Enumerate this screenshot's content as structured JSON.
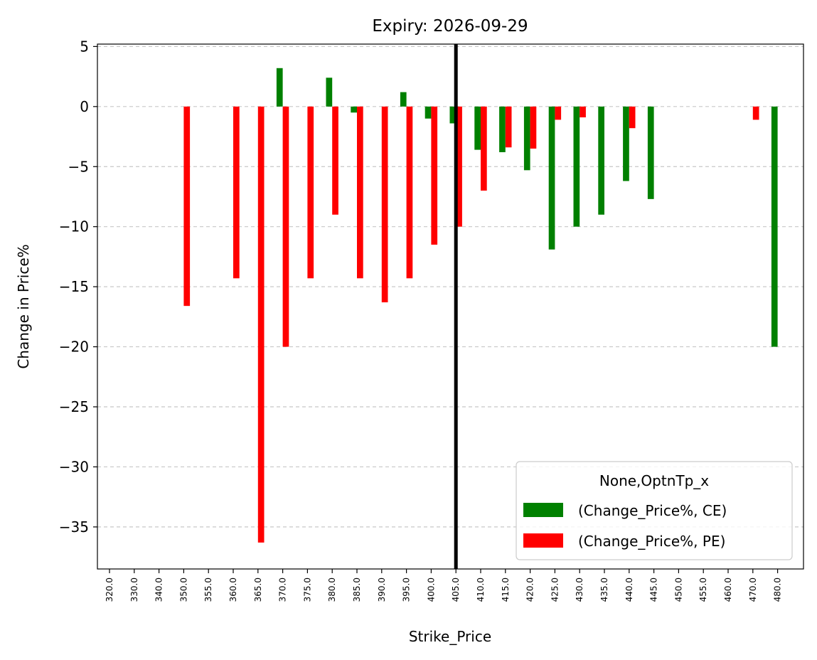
{
  "chart_data": {
    "type": "bar",
    "title": "Expiry: 2026-09-29",
    "xlabel": "Strike_Price",
    "ylabel": "Change in Price%",
    "categories": [
      "320.0",
      "330.0",
      "340.0",
      "350.0",
      "355.0",
      "360.0",
      "365.0",
      "370.0",
      "375.0",
      "380.0",
      "385.0",
      "390.0",
      "395.0",
      "400.0",
      "405.0",
      "410.0",
      "415.0",
      "420.0",
      "425.0",
      "430.0",
      "435.0",
      "440.0",
      "445.0",
      "450.0",
      "455.0",
      "460.0",
      "470.0",
      "480.0"
    ],
    "series": [
      {
        "name": "(Change_Price%, CE)",
        "color": "#008000",
        "values": [
          null,
          null,
          null,
          null,
          null,
          null,
          null,
          3.2,
          null,
          2.4,
          -0.5,
          null,
          1.2,
          -1.0,
          -1.4,
          -3.6,
          -3.8,
          -5.3,
          -11.9,
          -10.0,
          -9.0,
          -6.2,
          -7.7,
          null,
          null,
          null,
          null,
          -20.0
        ]
      },
      {
        "name": "(Change_Price%, PE)",
        "color": "#ff0000",
        "values": [
          null,
          null,
          null,
          -16.6,
          null,
          -14.3,
          -36.3,
          -20.0,
          -14.3,
          -9.0,
          -14.3,
          -16.3,
          -14.3,
          -11.5,
          -10.0,
          -7.0,
          -3.4,
          -3.5,
          -1.1,
          -0.9,
          null,
          -1.8,
          null,
          null,
          null,
          null,
          -1.1,
          null
        ]
      }
    ],
    "yticks": [
      5,
      0,
      -5,
      -10,
      -15,
      -20,
      -25,
      -30,
      -35
    ],
    "ylim": [
      -38.5,
      5.2
    ],
    "grid": "y-dashed",
    "vline_category": "405.0",
    "legend": {
      "title": "None,OptnTp_x",
      "placement": "lower-right"
    }
  }
}
